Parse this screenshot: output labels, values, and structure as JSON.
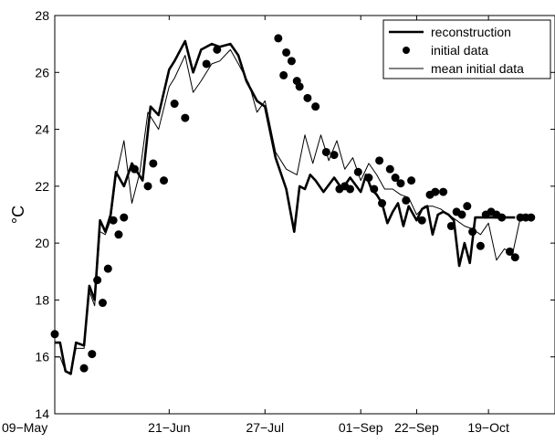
{
  "chart_data": {
    "type": "line",
    "ylabel": "°C",
    "ylim": [
      14,
      28
    ],
    "yticks": [
      14,
      16,
      18,
      20,
      22,
      24,
      26,
      28
    ],
    "xlim": [
      "2000-05-09",
      "2000-11-13"
    ],
    "xticks": [
      {
        "date": "2000-05-09",
        "label": "09−May"
      },
      {
        "date": "2000-06-21",
        "label": "21−Jun"
      },
      {
        "date": "2000-07-27",
        "label": "27−Jul"
      },
      {
        "date": "2000-09-01",
        "label": "01−Sep"
      },
      {
        "date": "2000-09-22",
        "label": "22−Sep"
      },
      {
        "date": "2000-10-19",
        "label": "19−Oct"
      }
    ],
    "grid": false,
    "legend": {
      "position": "top-right",
      "entries": [
        {
          "label": "reconstruction",
          "style": "thick-line"
        },
        {
          "label": "initial data",
          "style": "dot"
        },
        {
          "label": "mean initial data",
          "style": "thin-line"
        }
      ]
    },
    "series": [
      {
        "name": "reconstruction",
        "style": "thick-line",
        "x": [
          "2000-05-09",
          "2000-05-11",
          "2000-05-13",
          "2000-05-15",
          "2000-05-17",
          "2000-05-20",
          "2000-05-22",
          "2000-05-24",
          "2000-05-26",
          "2000-05-28",
          "2000-05-30",
          "2000-06-01",
          "2000-06-04",
          "2000-06-07",
          "2000-06-11",
          "2000-06-14",
          "2000-06-17",
          "2000-06-21",
          "2000-06-23",
          "2000-06-27",
          "2000-06-30",
          "2000-07-03",
          "2000-07-07",
          "2000-07-10",
          "2000-07-14",
          "2000-07-17",
          "2000-07-20",
          "2000-07-24",
          "2000-07-27",
          "2000-07-31",
          "2000-08-04",
          "2000-08-07",
          "2000-08-09",
          "2000-08-11",
          "2000-08-13",
          "2000-08-15",
          "2000-08-18",
          "2000-08-22",
          "2000-08-25",
          "2000-08-28",
          "2000-09-01",
          "2000-09-03",
          "2000-09-05",
          "2000-09-07",
          "2000-09-09",
          "2000-09-11",
          "2000-09-13",
          "2000-09-15",
          "2000-09-17",
          "2000-09-19",
          "2000-09-22",
          "2000-09-24",
          "2000-09-26",
          "2000-09-28",
          "2000-09-30",
          "2000-10-02",
          "2000-10-04",
          "2000-10-06",
          "2000-10-08",
          "2000-10-10",
          "2000-10-12",
          "2000-10-14",
          "2000-10-16",
          "2000-10-19",
          "2000-10-21",
          "2000-10-23",
          "2000-10-25",
          "2000-10-27",
          "2000-10-29"
        ],
        "y": [
          16.5,
          16.5,
          15.5,
          15.4,
          16.5,
          16.4,
          18.5,
          18.0,
          20.8,
          20.4,
          21.0,
          22.5,
          22.0,
          22.8,
          22.2,
          24.8,
          24.5,
          26.1,
          26.4,
          27.1,
          26.0,
          26.8,
          27.0,
          26.9,
          27.0,
          26.6,
          25.7,
          25.0,
          24.8,
          23.0,
          21.9,
          20.4,
          22.0,
          21.9,
          22.4,
          22.2,
          21.8,
          22.3,
          21.9,
          22.3,
          21.8,
          22.4,
          21.9,
          21.7,
          21.4,
          20.7,
          21.1,
          21.4,
          20.6,
          21.3,
          20.8,
          21.2,
          21.3,
          20.3,
          21.0,
          21.1,
          21.0,
          20.8,
          19.2,
          20.0,
          19.3,
          20.9,
          20.9,
          20.9,
          20.9,
          20.9,
          20.9,
          20.9,
          20.9
        ]
      },
      {
        "name": "initial data",
        "style": "dot",
        "x": [
          "2000-05-09",
          "2000-05-20",
          "2000-05-23",
          "2000-05-25",
          "2000-05-27",
          "2000-05-29",
          "2000-05-31",
          "2000-06-02",
          "2000-06-04",
          "2000-06-08",
          "2000-06-13",
          "2000-06-15",
          "2000-06-19",
          "2000-06-23",
          "2000-06-27",
          "2000-07-05",
          "2000-07-09",
          "2000-08-01",
          "2000-08-03",
          "2000-08-04",
          "2000-08-06",
          "2000-08-08",
          "2000-08-09",
          "2000-08-12",
          "2000-08-15",
          "2000-08-19",
          "2000-08-22",
          "2000-08-24",
          "2000-08-26",
          "2000-08-28",
          "2000-08-31",
          "2000-09-04",
          "2000-09-06",
          "2000-09-08",
          "2000-09-09",
          "2000-09-12",
          "2000-09-14",
          "2000-09-16",
          "2000-09-18",
          "2000-09-20",
          "2000-09-24",
          "2000-09-27",
          "2000-09-29",
          "2000-10-02",
          "2000-10-05",
          "2000-10-07",
          "2000-10-09",
          "2000-10-11",
          "2000-10-13",
          "2000-10-16",
          "2000-10-18",
          "2000-10-20",
          "2000-10-22",
          "2000-10-24",
          "2000-10-27",
          "2000-10-29",
          "2000-10-31",
          "2000-11-02",
          "2000-11-04"
        ],
        "y": [
          16.8,
          15.6,
          16.1,
          18.7,
          17.9,
          19.1,
          20.8,
          20.3,
          20.9,
          22.6,
          22.0,
          22.8,
          22.2,
          24.9,
          24.4,
          26.3,
          26.8,
          27.2,
          25.9,
          26.7,
          26.4,
          25.7,
          25.5,
          25.1,
          24.8,
          23.2,
          23.1,
          21.9,
          22.0,
          21.9,
          22.5,
          22.3,
          21.9,
          22.9,
          21.4,
          22.6,
          22.3,
          22.1,
          21.5,
          22.2,
          20.8,
          21.7,
          21.8,
          21.8,
          20.6,
          21.1,
          21.0,
          21.3,
          20.4,
          19.9,
          21.0,
          21.1,
          21.0,
          20.9,
          19.7,
          19.5,
          20.9,
          20.9,
          20.9
        ]
      },
      {
        "name": "mean initial data",
        "style": "thin-line",
        "x": [
          "2000-05-09",
          "2000-05-11",
          "2000-05-13",
          "2000-05-15",
          "2000-05-17",
          "2000-05-20",
          "2000-05-22",
          "2000-05-24",
          "2000-05-26",
          "2000-05-28",
          "2000-05-30",
          "2000-06-01",
          "2000-06-04",
          "2000-06-07",
          "2000-06-10",
          "2000-06-13",
          "2000-06-17",
          "2000-06-21",
          "2000-06-23",
          "2000-06-27",
          "2000-06-30",
          "2000-07-03",
          "2000-07-07",
          "2000-07-10",
          "2000-07-14",
          "2000-07-17",
          "2000-07-21",
          "2000-07-24",
          "2000-07-27",
          "2000-07-31",
          "2000-08-04",
          "2000-08-08",
          "2000-08-11",
          "2000-08-14",
          "2000-08-17",
          "2000-08-20",
          "2000-08-23",
          "2000-08-26",
          "2000-08-29",
          "2000-09-01",
          "2000-09-04",
          "2000-09-07",
          "2000-09-10",
          "2000-09-13",
          "2000-09-16",
          "2000-09-19",
          "2000-09-22",
          "2000-09-25",
          "2000-09-28",
          "2000-10-01",
          "2000-10-04",
          "2000-10-07",
          "2000-10-10",
          "2000-10-13",
          "2000-10-16",
          "2000-10-19",
          "2000-10-22",
          "2000-10-25",
          "2000-10-28",
          "2000-10-31"
        ],
        "y": [
          16.0,
          16.0,
          15.5,
          15.4,
          16.3,
          16.3,
          18.3,
          17.8,
          20.4,
          20.3,
          20.8,
          22.3,
          23.6,
          21.4,
          22.5,
          24.6,
          24.0,
          25.5,
          25.8,
          26.6,
          25.3,
          25.7,
          26.3,
          26.4,
          26.8,
          26.3,
          25.6,
          24.6,
          25.0,
          23.2,
          22.6,
          22.4,
          23.8,
          22.8,
          23.8,
          22.9,
          23.6,
          22.6,
          23.0,
          22.2,
          22.8,
          22.4,
          21.9,
          21.9,
          21.7,
          21.6,
          21.0,
          21.3,
          21.3,
          21.2,
          21.0,
          20.8,
          20.6,
          20.5,
          20.3,
          20.7,
          19.4,
          19.8,
          19.6,
          20.9
        ]
      }
    ]
  }
}
